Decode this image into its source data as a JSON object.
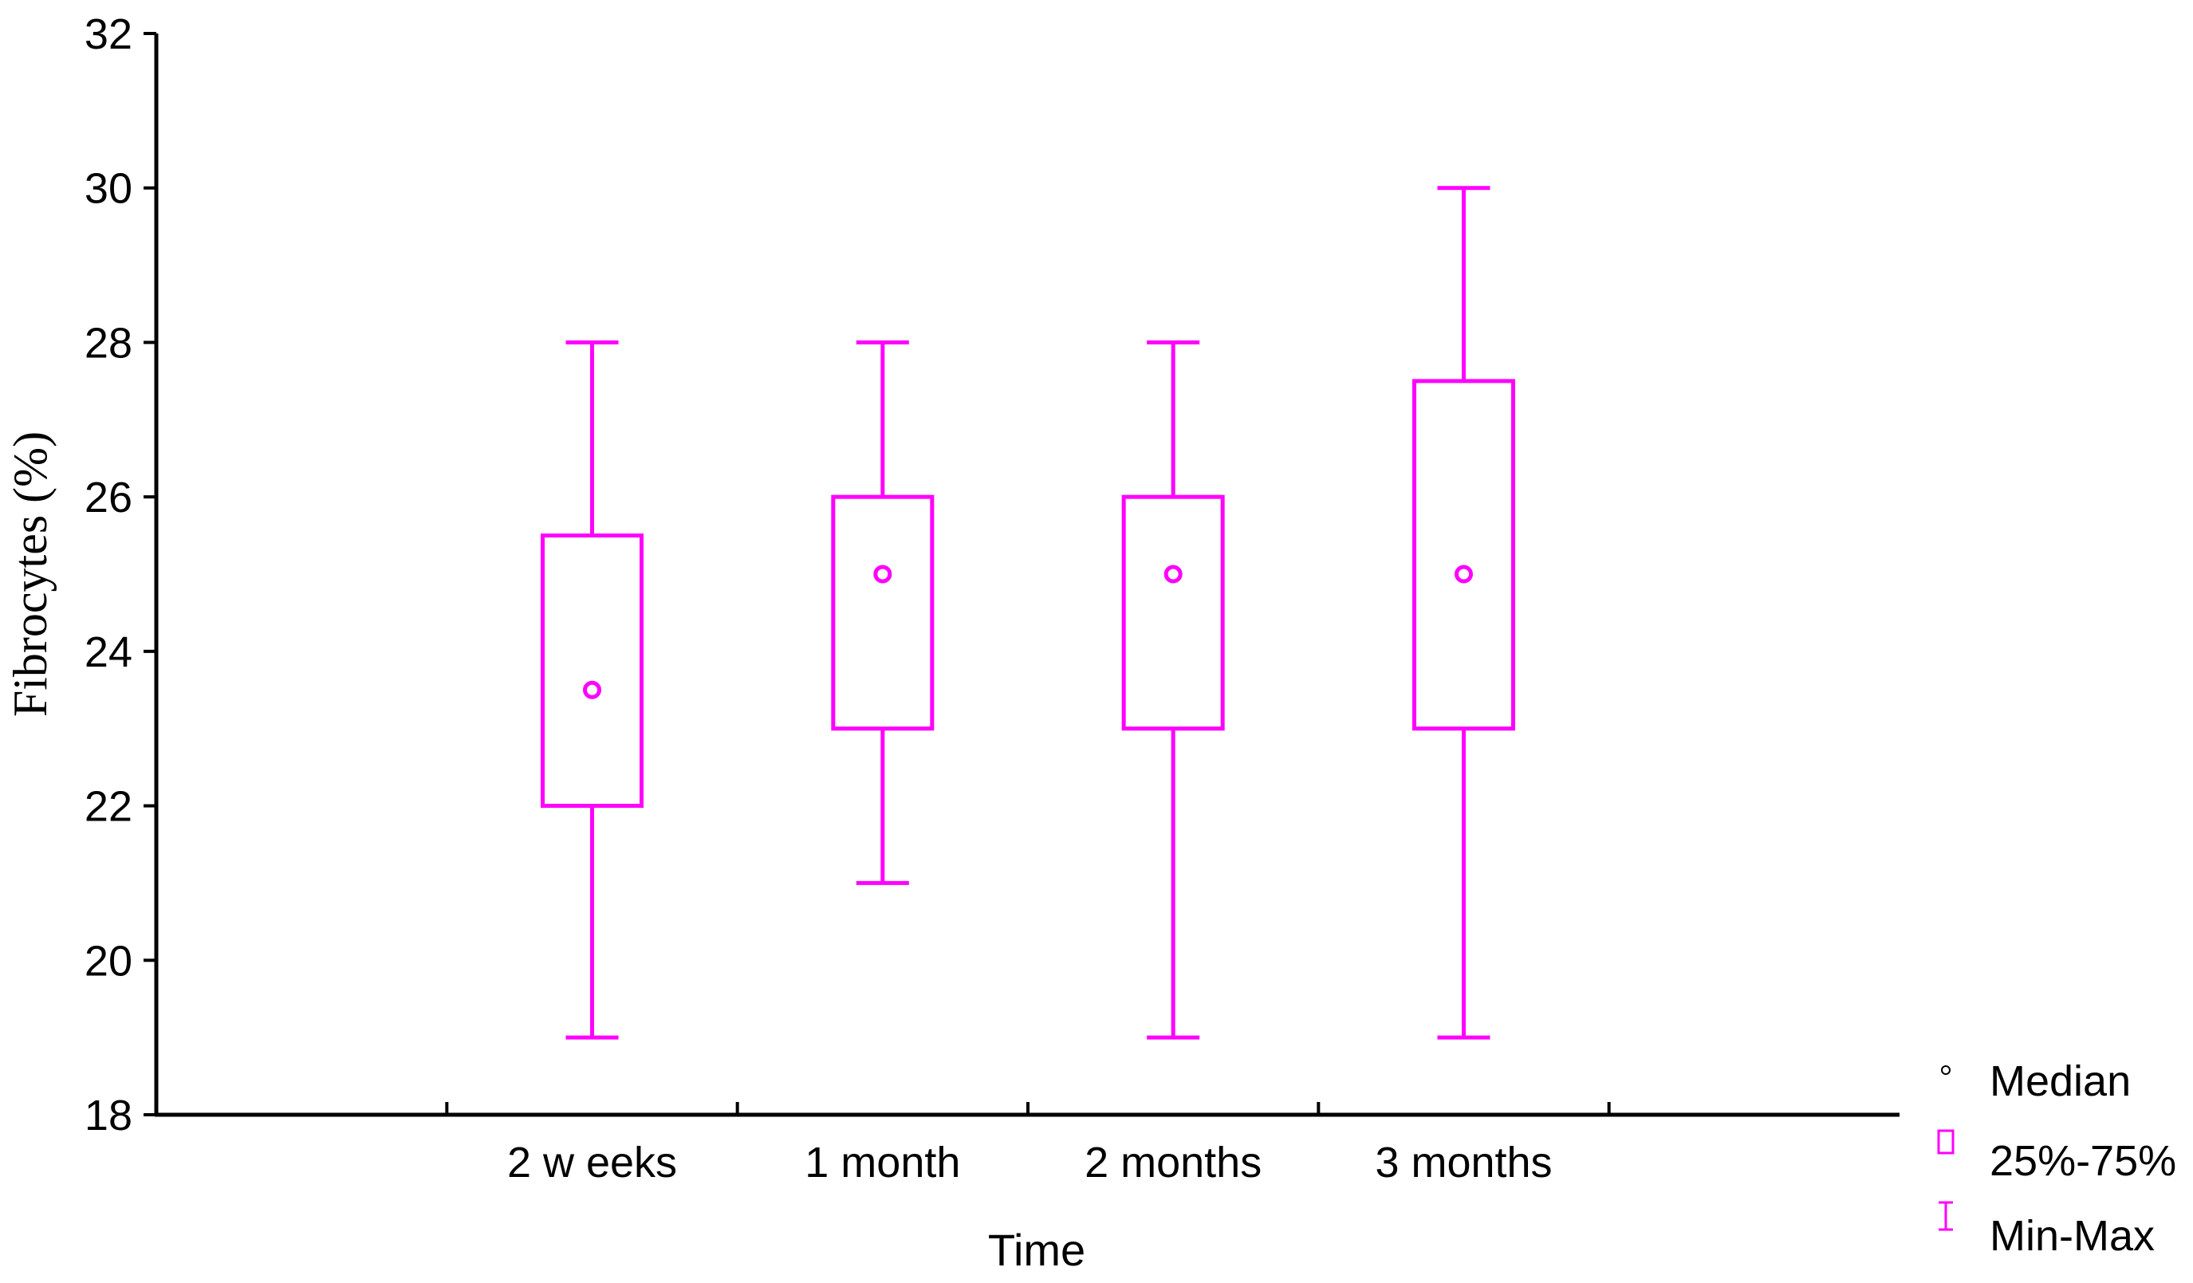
{
  "chart_data": {
    "type": "boxplot",
    "title": "",
    "xlabel": "Time",
    "ylabel": "Fibrocytes (%)",
    "ylim": [
      18,
      32
    ],
    "yticks": [
      18,
      20,
      22,
      24,
      26,
      28,
      30,
      32
    ],
    "categories": [
      "2 w eeks",
      "1 month",
      "2 months",
      "3 months"
    ],
    "series": [
      {
        "color": "#ff00ff",
        "boxes": [
          {
            "category": "2 w eeks",
            "min": 19,
            "q1": 22,
            "median": 23.5,
            "q3": 25.5,
            "max": 28
          },
          {
            "category": "1 month",
            "min": 21,
            "q1": 23,
            "median": 25,
            "q3": 26,
            "max": 28
          },
          {
            "category": "2 months",
            "min": 19,
            "q1": 23,
            "median": 25,
            "q3": 26,
            "max": 28
          },
          {
            "category": "3 months",
            "min": 19,
            "q1": 23,
            "median": 25,
            "q3": 27.5,
            "max": 30
          }
        ]
      }
    ],
    "legend": {
      "position": "bottom-right",
      "items": [
        {
          "label": "Median",
          "icon": "circle-marker-icon"
        },
        {
          "label": "25%-75%",
          "icon": "box-icon"
        },
        {
          "label": "Min-Max",
          "icon": "whisker-icon"
        }
      ]
    },
    "grid": false
  }
}
